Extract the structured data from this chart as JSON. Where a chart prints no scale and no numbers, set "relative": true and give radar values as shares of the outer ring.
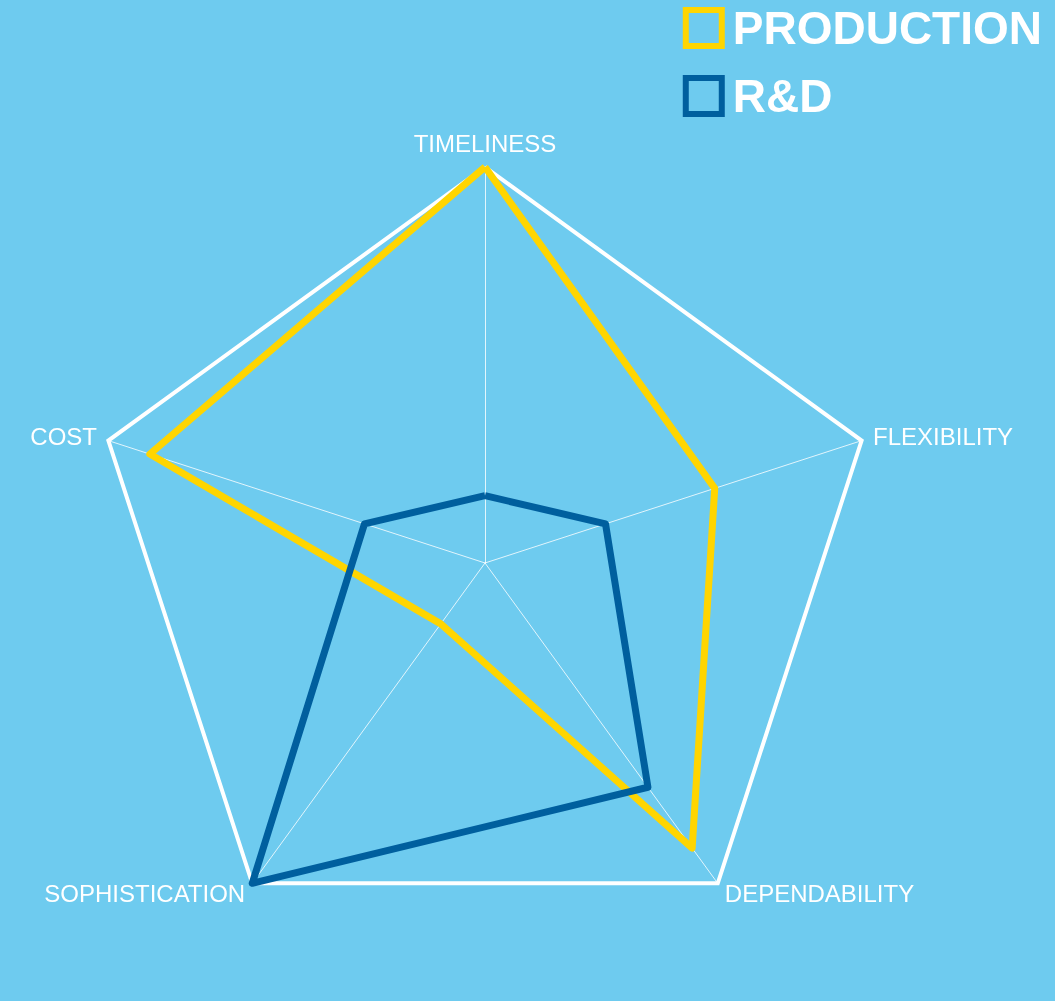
{
  "chart_data": {
    "type": "radar",
    "relative": true,
    "categories": [
      "TIMELINESS",
      "FLEXIBILITY",
      "DEPENDABILITY",
      "SOPHISTICATION",
      "COST"
    ],
    "series": [
      {
        "name": "PRODUCTION",
        "color": "#ffd500",
        "values": [
          1.0,
          0.61,
          0.89,
          0.19,
          0.89
        ]
      },
      {
        "name": "R&D",
        "color": "#005f9e",
        "values": [
          0.17,
          0.32,
          0.7,
          1.0,
          0.32
        ]
      }
    ],
    "legend": "top right",
    "marker": "none",
    "grid": true
  }
}
